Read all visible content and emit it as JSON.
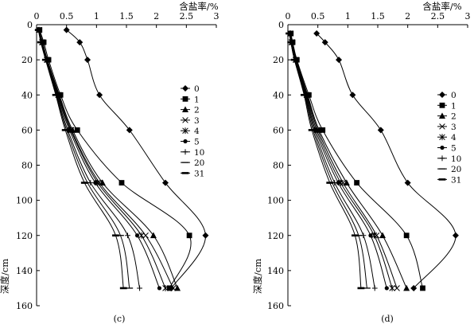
{
  "chart_data": [
    {
      "type": "line",
      "panel_label": "(c)",
      "x_axis_position": "top",
      "xlabel": "含盐率/%",
      "ylabel": "深度/cm",
      "xlim": [
        0,
        3
      ],
      "ylim": [
        0,
        160
      ],
      "y_inverted": true,
      "x_ticks": [
        "0",
        "0.5",
        "1",
        "1.5",
        "2",
        "2.5",
        "3"
      ],
      "y_ticks": [
        "0",
        "20",
        "40",
        "60",
        "80",
        "100",
        "120",
        "140",
        "160"
      ],
      "grid": false,
      "legend_position": "right",
      "series": [
        {
          "name": "0",
          "marker": "diamond",
          "points": [
            [
              0.5,
              3
            ],
            [
              0.72,
              10
            ],
            [
              0.85,
              20
            ],
            [
              1.05,
              40
            ],
            [
              1.55,
              60
            ],
            [
              2.15,
              90
            ],
            [
              2.82,
              120
            ],
            [
              2.25,
              150
            ]
          ]
        },
        {
          "name": "1",
          "marker": "square",
          "points": [
            [
              0.05,
              3
            ],
            [
              0.12,
              10
            ],
            [
              0.2,
              20
            ],
            [
              0.4,
              40
            ],
            [
              0.68,
              60
            ],
            [
              1.42,
              90
            ],
            [
              2.55,
              120
            ],
            [
              2.22,
              150
            ]
          ]
        },
        {
          "name": "2",
          "marker": "triangle",
          "points": [
            [
              0.04,
              3
            ],
            [
              0.1,
              10
            ],
            [
              0.18,
              20
            ],
            [
              0.38,
              40
            ],
            [
              0.6,
              60
            ],
            [
              1.1,
              90
            ],
            [
              1.95,
              120
            ],
            [
              2.35,
              150
            ]
          ]
        },
        {
          "name": "3",
          "marker": "x",
          "points": [
            [
              0.04,
              3
            ],
            [
              0.1,
              10
            ],
            [
              0.18,
              20
            ],
            [
              0.37,
              40
            ],
            [
              0.58,
              60
            ],
            [
              1.05,
              90
            ],
            [
              1.82,
              120
            ],
            [
              2.28,
              150
            ]
          ]
        },
        {
          "name": "4",
          "marker": "star",
          "points": [
            [
              0.04,
              3
            ],
            [
              0.09,
              10
            ],
            [
              0.17,
              20
            ],
            [
              0.36,
              40
            ],
            [
              0.57,
              60
            ],
            [
              1.02,
              90
            ],
            [
              1.75,
              120
            ],
            [
              2.15,
              150
            ]
          ]
        },
        {
          "name": "5",
          "marker": "circle",
          "points": [
            [
              0.04,
              3
            ],
            [
              0.09,
              10
            ],
            [
              0.17,
              20
            ],
            [
              0.35,
              40
            ],
            [
              0.55,
              60
            ],
            [
              0.98,
              90
            ],
            [
              1.68,
              120
            ],
            [
              2.05,
              150
            ]
          ]
        },
        {
          "name": "10",
          "marker": "plus",
          "points": [
            [
              0.03,
              3
            ],
            [
              0.08,
              10
            ],
            [
              0.16,
              20
            ],
            [
              0.34,
              40
            ],
            [
              0.52,
              60
            ],
            [
              0.9,
              90
            ],
            [
              1.52,
              120
            ],
            [
              1.72,
              150
            ]
          ]
        },
        {
          "name": "20",
          "marker": "dash",
          "points": [
            [
              0.03,
              3
            ],
            [
              0.08,
              10
            ],
            [
              0.16,
              20
            ],
            [
              0.33,
              40
            ],
            [
              0.5,
              60
            ],
            [
              0.85,
              90
            ],
            [
              1.4,
              120
            ],
            [
              1.55,
              150
            ]
          ]
        },
        {
          "name": "31",
          "marker": "bar",
          "points": [
            [
              0.03,
              3
            ],
            [
              0.07,
              10
            ],
            [
              0.15,
              20
            ],
            [
              0.32,
              40
            ],
            [
              0.48,
              60
            ],
            [
              0.8,
              90
            ],
            [
              1.32,
              120
            ],
            [
              1.45,
              150
            ]
          ]
        }
      ]
    },
    {
      "type": "line",
      "panel_label": "(d)",
      "x_axis_position": "top",
      "xlabel": "含盐率/%",
      "ylabel": "深度/cm",
      "xlim": [
        0,
        3
      ],
      "ylim": [
        0,
        160
      ],
      "y_inverted": true,
      "x_ticks": [
        "0",
        "0.5",
        "1",
        "1.5",
        "2",
        "2.5",
        "3"
      ],
      "y_ticks": [
        "0",
        "20",
        "40",
        "60",
        "80",
        "100",
        "120",
        "140",
        "160"
      ],
      "grid": false,
      "legend_position": "right",
      "series": [
        {
          "name": "0",
          "marker": "diamond",
          "points": [
            [
              0.48,
              5
            ],
            [
              0.62,
              10
            ],
            [
              0.85,
              20
            ],
            [
              1.08,
              40
            ],
            [
              1.55,
              60
            ],
            [
              2.0,
              90
            ],
            [
              2.8,
              120
            ],
            [
              2.1,
              150
            ]
          ]
        },
        {
          "name": "1",
          "marker": "square",
          "points": [
            [
              0.05,
              5
            ],
            [
              0.08,
              10
            ],
            [
              0.15,
              20
            ],
            [
              0.35,
              40
            ],
            [
              0.58,
              60
            ],
            [
              1.15,
              90
            ],
            [
              1.98,
              120
            ],
            [
              2.25,
              150
            ]
          ]
        },
        {
          "name": "2",
          "marker": "triangle",
          "points": [
            [
              0.04,
              5
            ],
            [
              0.07,
              10
            ],
            [
              0.14,
              20
            ],
            [
              0.33,
              40
            ],
            [
              0.52,
              60
            ],
            [
              0.98,
              90
            ],
            [
              1.58,
              120
            ],
            [
              1.98,
              150
            ]
          ]
        },
        {
          "name": "3",
          "marker": "x",
          "points": [
            [
              0.04,
              5
            ],
            [
              0.07,
              10
            ],
            [
              0.13,
              20
            ],
            [
              0.32,
              40
            ],
            [
              0.5,
              60
            ],
            [
              0.92,
              90
            ],
            [
              1.48,
              120
            ],
            [
              1.82,
              150
            ]
          ]
        },
        {
          "name": "4",
          "marker": "star",
          "points": [
            [
              0.04,
              5
            ],
            [
              0.06,
              10
            ],
            [
              0.13,
              20
            ],
            [
              0.31,
              40
            ],
            [
              0.48,
              60
            ],
            [
              0.88,
              90
            ],
            [
              1.44,
              120
            ],
            [
              1.74,
              150
            ]
          ]
        },
        {
          "name": "5",
          "marker": "circle",
          "points": [
            [
              0.03,
              5
            ],
            [
              0.06,
              10
            ],
            [
              0.12,
              20
            ],
            [
              0.3,
              40
            ],
            [
              0.46,
              60
            ],
            [
              0.84,
              90
            ],
            [
              1.38,
              120
            ],
            [
              1.65,
              150
            ]
          ]
        },
        {
          "name": "10",
          "marker": "plus",
          "points": [
            [
              0.03,
              5
            ],
            [
              0.05,
              10
            ],
            [
              0.12,
              20
            ],
            [
              0.29,
              40
            ],
            [
              0.44,
              60
            ],
            [
              0.78,
              90
            ],
            [
              1.26,
              120
            ],
            [
              1.45,
              150
            ]
          ]
        },
        {
          "name": "20",
          "marker": "dash",
          "points": [
            [
              0.03,
              5
            ],
            [
              0.05,
              10
            ],
            [
              0.11,
              20
            ],
            [
              0.28,
              40
            ],
            [
              0.42,
              60
            ],
            [
              0.74,
              90
            ],
            [
              1.18,
              120
            ],
            [
              1.32,
              150
            ]
          ]
        },
        {
          "name": "31",
          "marker": "bar",
          "points": [
            [
              0.02,
              5
            ],
            [
              0.05,
              10
            ],
            [
              0.11,
              20
            ],
            [
              0.27,
              40
            ],
            [
              0.4,
              60
            ],
            [
              0.7,
              90
            ],
            [
              1.12,
              120
            ],
            [
              1.22,
              150
            ]
          ]
        }
      ]
    }
  ]
}
